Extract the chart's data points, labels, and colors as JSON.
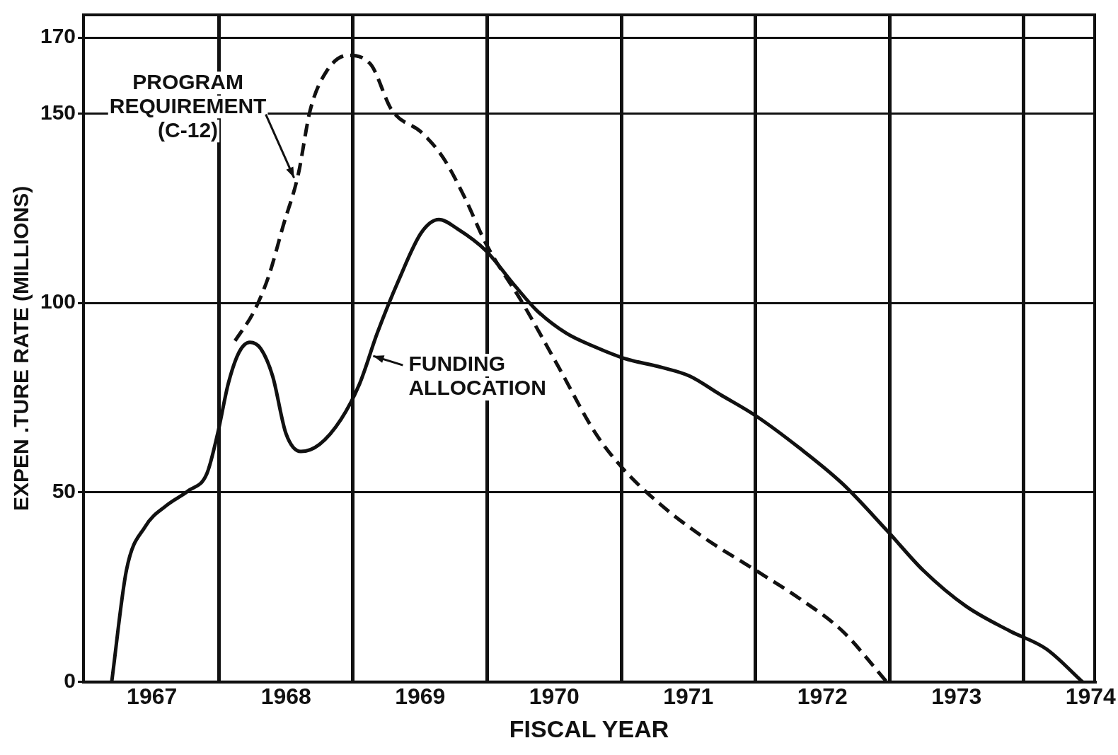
{
  "chart_data": {
    "type": "line",
    "xlabel": "FISCAL YEAR",
    "ylabel": "EXPEN .TURE RATE (MILLIONS)",
    "xlim": [
      1966.49,
      1974.03
    ],
    "ylim": [
      0,
      176
    ],
    "xticks": [
      {
        "value": 1967,
        "label": "1967"
      },
      {
        "value": 1967.5,
        "label": null
      },
      {
        "value": 1968,
        "label": "1968"
      },
      {
        "value": 1968.5,
        "label": null
      },
      {
        "value": 1969,
        "label": "1969"
      },
      {
        "value": 1969.5,
        "label": null
      },
      {
        "value": 1970,
        "label": "1970"
      },
      {
        "value": 1970.5,
        "label": null
      },
      {
        "value": 1971,
        "label": "1971"
      },
      {
        "value": 1971.5,
        "label": null
      },
      {
        "value": 1972,
        "label": "1972"
      },
      {
        "value": 1972.5,
        "label": null
      },
      {
        "value": 1973,
        "label": "1973"
      },
      {
        "value": 1973.5,
        "label": null
      },
      {
        "value": 1974,
        "label": "1974"
      }
    ],
    "yticks": [
      0,
      50,
      100,
      150,
      170
    ],
    "grid": true,
    "legend": false,
    "marker": "none",
    "series": [
      {
        "color": "#111111",
        "line_style": "solid",
        "x": [
          1966.7,
          1966.81,
          1966.95,
          1967.11,
          1967.27,
          1967.41,
          1967.49,
          1967.57,
          1967.65,
          1967.73,
          1967.81,
          1967.9,
          1968.0,
          1968.11,
          1968.25,
          1968.41,
          1968.55,
          1968.68,
          1968.84,
          1969.01,
          1969.14,
          1969.28,
          1969.49,
          1969.71,
          1969.87,
          1970.09,
          1970.31,
          1970.52,
          1970.8,
          1971.01,
          1971.23,
          1971.5,
          1971.83,
          1972.15,
          1972.48,
          1972.75,
          1973.07,
          1973.4,
          1973.67,
          1973.94
        ],
        "values": [
          0,
          29.5,
          41,
          46.6,
          50.4,
          55,
          65.5,
          78.8,
          87,
          89.6,
          88,
          80.7,
          65.5,
          60.8,
          62.7,
          69.3,
          78.8,
          92,
          106,
          118.6,
          122,
          119.5,
          113.8,
          104.4,
          98,
          92,
          88.3,
          85.4,
          83,
          80.7,
          76,
          70.3,
          61.7,
          52.3,
          40,
          29.5,
          20,
          13.4,
          8.7,
          0
        ]
      },
      {
        "color": "#111111",
        "line_style": "dashed",
        "x": [
          1967.62,
          1967.76,
          1967.87,
          1967.98,
          1968.09,
          1968.18,
          1968.3,
          1968.46,
          1968.63,
          1968.79,
          1969.01,
          1969.17,
          1969.33,
          1969.49,
          1969.77,
          1970.04,
          1970.31,
          1970.52,
          1970.8,
          1971.12,
          1971.5,
          1971.83,
          1972.15,
          1972.48
        ],
        "values": [
          90,
          97.7,
          107,
          120.5,
          133.7,
          150.8,
          161,
          165.3,
          163,
          150.8,
          145,
          138.4,
          128,
          115.7,
          99.6,
          82.6,
          65.5,
          56,
          46.6,
          38,
          29.5,
          22,
          13.4,
          0
        ]
      }
    ],
    "annotations": [
      {
        "text": "PROGRAM REQUIREMENT (C-12)",
        "x": 1968.06,
        "y": 133
      },
      {
        "text": "FUNDING ALLOCATION",
        "x": 1968.65,
        "y": 86
      }
    ]
  }
}
